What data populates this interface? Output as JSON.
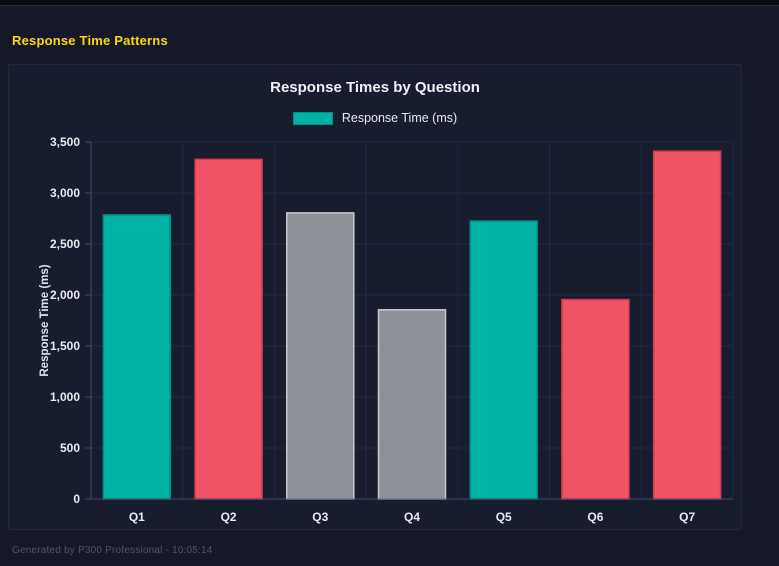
{
  "page": {
    "title": "Response Time Patterns",
    "footer": "Generated by P300 Professional - 10:05:14"
  },
  "colors": {
    "accent_yellow": "#ffd60a",
    "teal": {
      "fill": "#00b2a4",
      "border": "#008f84"
    },
    "red": {
      "fill": "#ef5365",
      "border": "#cc3e50"
    },
    "gray": {
      "fill": "#8e9097",
      "border": "#c8cbd2"
    },
    "grid": "#242a44",
    "axis": "#464d6b",
    "tick_text": "#e9ebf2",
    "axis_title_text": "#dfe2ea"
  },
  "chart_data": {
    "type": "bar",
    "title": "Response Times by Question",
    "legend": [
      {
        "label": "Response Time (ms)",
        "color": "teal"
      }
    ],
    "legend_position": "top",
    "categories": [
      "Q1",
      "Q2",
      "Q3",
      "Q4",
      "Q5",
      "Q6",
      "Q7"
    ],
    "values": [
      2785,
      3330,
      2805,
      1855,
      2725,
      1955,
      3410
    ],
    "bar_colors": [
      "teal",
      "red",
      "gray",
      "gray",
      "teal",
      "red",
      "red"
    ],
    "xlabel": "",
    "ylabel": "Response Time (ms)",
    "ylim": [
      0,
      3500
    ],
    "ytick_step": 500,
    "grid": true
  }
}
